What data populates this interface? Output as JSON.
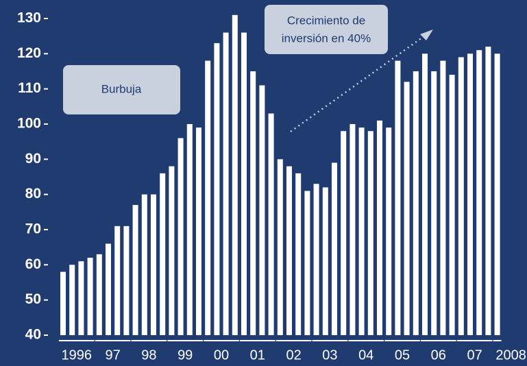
{
  "chart_data": {
    "type": "bar",
    "categories": [
      "1996",
      null,
      null,
      null,
      "97",
      null,
      null,
      null,
      "98",
      null,
      null,
      null,
      "99",
      null,
      null,
      null,
      "00",
      null,
      null,
      null,
      "01",
      null,
      null,
      null,
      "02",
      null,
      null,
      null,
      "03",
      null,
      null,
      null,
      "04",
      null,
      null,
      null,
      "05",
      null,
      null,
      null,
      "06",
      null,
      null,
      null,
      "07",
      null,
      null,
      null,
      "2008"
    ],
    "values": [
      58,
      60,
      61,
      62,
      63,
      66,
      71,
      71,
      77,
      80,
      80,
      86,
      88,
      96,
      100,
      99,
      118,
      123,
      126,
      131,
      126,
      115,
      111,
      103,
      90,
      88,
      86,
      81,
      83,
      82,
      89,
      98,
      100,
      99,
      98,
      101,
      99,
      118,
      112,
      115,
      120,
      115,
      118,
      114,
      119,
      120,
      121,
      122,
      120
    ],
    "color": "#ffffff",
    "ylim": [
      40,
      130
    ],
    "yticks": [
      40,
      50,
      60,
      70,
      80,
      90,
      100,
      110,
      120,
      130
    ],
    "annotations": [
      {
        "text": "Burbuja"
      },
      {
        "lines": [
          "Crecimiento de",
          "inversión en 40%"
        ]
      }
    ]
  }
}
